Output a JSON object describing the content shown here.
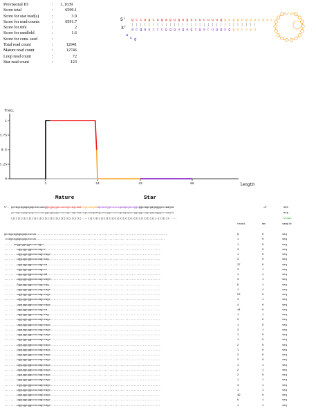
{
  "summary": {
    "rows": [
      {
        "label": "Provisional ID",
        "value": "1_1639"
      },
      {
        "label": "Score total",
        "value": "6599.1"
      },
      {
        "label": "Score for star read(s)",
        "value": "3.9"
      },
      {
        "label": "Score for read counts",
        "value": "6591.7"
      },
      {
        "label": "Score for mfe",
        "value": "2"
      },
      {
        "label": "Score for randfold",
        "value": "1.6"
      },
      {
        "label": "Score for cons. seed",
        "value": ""
      },
      {
        "label": "Total read count",
        "value": "12941"
      },
      {
        "label": "Mature read count",
        "value": "12746"
      },
      {
        "label": "Loop read count",
        "value": "72"
      },
      {
        "label": "Star read count",
        "value": "123"
      }
    ]
  },
  "hairpin": {
    "label_5p": "5'",
    "label_3p": "3'"
  },
  "chart_data": {
    "type": "area",
    "ylabel": "freq.",
    "xlabel": "length",
    "y_ticks": [
      "1",
      "0.75",
      "0.5",
      "0.25",
      "0"
    ],
    "x_ticks": [
      "1",
      "24",
      "43",
      "66"
    ],
    "ylim": [
      0,
      1
    ],
    "segments": [
      {
        "name": "pre",
        "color": "#000000",
        "x": [
          1,
          3
        ],
        "values": [
          1,
          1
        ]
      },
      {
        "name": "mature",
        "color": "#ee1111",
        "x": [
          3,
          24
        ],
        "values": [
          1,
          1
        ]
      },
      {
        "name": "loop",
        "color": "#f5a623",
        "x": [
          24,
          43
        ],
        "values": [
          0,
          0
        ]
      },
      {
        "name": "star",
        "color": "#8b2fc9",
        "x": [
          43,
          66
        ],
        "values": [
          0,
          0
        ]
      }
    ]
  },
  "alignment": {
    "mature_label": "Mature",
    "star_label": "Star",
    "mature_color": "#ee1111",
    "star_color": "#8b2fc9",
    "loop_color": "#f5a623",
    "known_color": "#22aa22",
    "prefix_5": "5'-",
    "suffix_3": "-3'",
    "precursor": "gccagcugagugugucucuuuggugguggucuucagccagcaaaccgacaagaaagcacuggcuccucgaagugucugguggucagcgagugggcccaagca",
    "tags": [
      "obs",
      "exp",
      "known"
    ],
    "exp_line": "gccagcugagugugucucuuuggugguggucuucagccagcaaaccgacaagaaagcacuggcuccucgaagugucugguggucagcgagugggcccaagca",
    "structure": "((((((((((((((((((((((((((((((((((((((((((((....))))))))))))))))))))))))))))))))))))))))))).))))))).....",
    "col_reads": "reads",
    "col_mm": "mm",
    "col_sample": "sample",
    "reads": [
      {
        "seq": "gccagcugagugugucucuu..................................................................................",
        "count": "9",
        "mm": "0",
        "sample": "seq"
      },
      {
        "seq": ".ccagcugagugugucucuu.................................................................................",
        "count": "1",
        "mm": "0",
        "sample": "seq"
      },
      {
        "seq": "......uuggugguggucuucagcc.........................................................................",
        "count": "1",
        "mm": "0",
        "sample": "seq"
      },
      {
        "seq": "........uggugguggucuucagcc........................................................................",
        "count": "3",
        "mm": "0",
        "sample": "seq"
      },
      {
        "seq": "........uggugguggucuucagccagc.....................................................................",
        "count": "1",
        "mm": "0",
        "sample": "seq"
      },
      {
        "seq": "........uggugguggucuucagccag......................................................................",
        "count": "3",
        "mm": "0",
        "sample": "seq"
      },
      {
        "seq": "........uggugguggucuucagcca.......................................................................",
        "count": "27",
        "mm": "0",
        "sample": "seq"
      },
      {
        "seq": "........uggugguggucuucagccc.......................................................................",
        "count": "3",
        "mm": "1",
        "sample": "seq"
      },
      {
        "seq": "........uggugguggucuucagcaA.......................................................................",
        "count": "1",
        "mm": "1",
        "sample": "seq"
      },
      {
        "seq": "........uggugguggucuucagccagU.....................................................................",
        "count": "3",
        "mm": "1",
        "sample": "seq"
      },
      {
        "seq": "........Gggugguggucuucagccag......................................................................",
        "count": "6",
        "mm": "1",
        "sample": "seq"
      },
      {
        "seq": "........uggugguggucuucagccagc.....................................................................",
        "count": "1",
        "mm": "1",
        "sample": "seq"
      },
      {
        "seq": "........uggugguggucuucagccagc.....................................................................",
        "count": "52",
        "mm": "0",
        "sample": "seq"
      },
      {
        "seq": "........uggugguggucuucagccagc.....................................................................",
        "count": "3",
        "mm": "1",
        "sample": "seq"
      },
      {
        "seq": "........uggugguggucuucagccagc.....................................................................",
        "count": "4",
        "mm": "0",
        "sample": "seq"
      },
      {
        "seq": "........uggugguggucuucagcca.......................................................................",
        "count": "44",
        "mm": "0",
        "sample": "seq"
      },
      {
        "seq": "........uggugguggucuucagccag......................................................................",
        "count": "1",
        "mm": "1",
        "sample": "seq"
      },
      {
        "seq": "........uggugguggucuucagccagc.....................................................................",
        "count": "2",
        "mm": "0",
        "sample": "seq"
      },
      {
        "seq": "........uggugguggucuucagccagc.....................................................................",
        "count": "1",
        "mm": "0",
        "sample": "seq"
      },
      {
        "seq": "........uggugguggucuucagccagc.....................................................................",
        "count": "2",
        "mm": "1",
        "sample": "seq"
      },
      {
        "seq": "........uggugguggucuucagccagc.....................................................................",
        "count": "1",
        "mm": "0",
        "sample": "seq"
      },
      {
        "seq": "........uggugguggucuucagccagc.....................................................................",
        "count": "1",
        "mm": "0",
        "sample": "seq"
      },
      {
        "seq": "........uggugguggucuucagccagc.....................................................................",
        "count": "2",
        "mm": "0",
        "sample": "seq"
      },
      {
        "seq": "........uggugguggucuucagccagc.....................................................................",
        "count": "1",
        "mm": "0",
        "sample": "seq"
      },
      {
        "seq": "........uggugguggucuucagccagc.....................................................................",
        "count": "2",
        "mm": "0",
        "sample": "seq"
      },
      {
        "seq": "........uggugguggucuucagccagc.....................................................................",
        "count": "2",
        "mm": "0",
        "sample": "seq"
      },
      {
        "seq": "........uggugguggucuucagccagc.....................................................................",
        "count": "1",
        "mm": "1",
        "sample": "seq"
      },
      {
        "seq": "........uggugguggucuucagccagc.....................................................................",
        "count": "2",
        "mm": "1",
        "sample": "seq"
      },
      {
        "seq": "........uggugguggucuucagccagc.....................................................................",
        "count": "2",
        "mm": "0",
        "sample": "seq"
      },
      {
        "seq": "........uggugguggucuucagccagc.....................................................................",
        "count": "1",
        "mm": "1",
        "sample": "seq"
      },
      {
        "seq": "........Cggugguggucuucagccagc.....................................................................",
        "count": "3",
        "mm": "1",
        "sample": "seq"
      },
      {
        "seq": "........uggugguggucuucagccagc.....................................................................",
        "count": "1",
        "mm": "1",
        "sample": "seq"
      },
      {
        "seq": "........uggugguggucuucagccagc.....................................................................",
        "count": "49",
        "mm": "0",
        "sample": "seq"
      },
      {
        "seq": "........uggugguggucuucagccagc.....................................................................",
        "count": "6",
        "mm": "1",
        "sample": "seq"
      },
      {
        "seq": "........uggugguggucuucagccagc.....................................................................",
        "count": "1",
        "mm": "1",
        "sample": "seq"
      }
    ]
  }
}
